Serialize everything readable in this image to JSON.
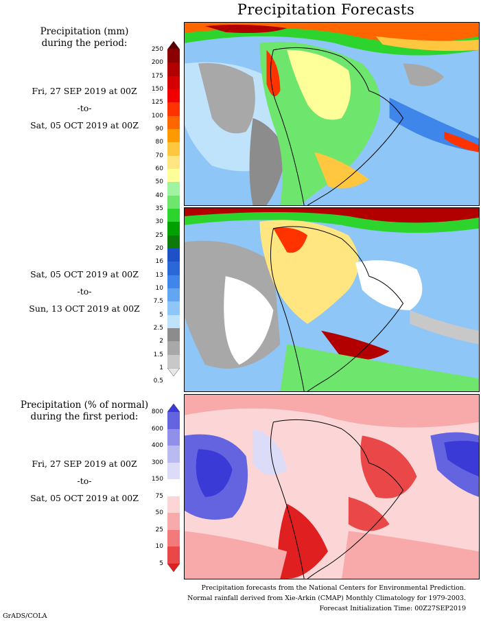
{
  "title": "Precipitation Forecasts",
  "legend1": {
    "heading_line1": "Precipitation (mm)",
    "heading_line2": "during the period:"
  },
  "period1": {
    "from": "Fri, 27 SEP 2019 at 00Z",
    "sep": "-to-",
    "to": "Sat, 05 OCT 2019 at 00Z"
  },
  "period2": {
    "from": "Sat, 05 OCT 2019 at 00Z",
    "sep": "-to-",
    "to": "Sun, 13 OCT 2019 at 00Z"
  },
  "legend2": {
    "heading_line1": "Precipitation (% of normal)",
    "heading_line2": "during the first period:"
  },
  "period3": {
    "from": "Fri, 27 SEP 2019 at 00Z",
    "sep": "-to-",
    "to": "Sat, 05 OCT 2019 at 00Z"
  },
  "mm_scale": {
    "labels": [
      "250",
      "200",
      "175",
      "150",
      "125",
      "100",
      "90",
      "80",
      "70",
      "60",
      "50",
      "40",
      "35",
      "30",
      "25",
      "20",
      "16",
      "13",
      "10",
      "7.5",
      "5",
      "2.5",
      "2",
      "1.5",
      "1",
      "0.5"
    ],
    "colors": [
      "#5e0000",
      "#8b0000",
      "#b20000",
      "#d40000",
      "#f00000",
      "#ff3300",
      "#ff6600",
      "#ff9900",
      "#ffc640",
      "#ffe680",
      "#ffff99",
      "#9ff59f",
      "#6ee66e",
      "#2ed42e",
      "#00a000",
      "#0b7a0b",
      "#1e50c8",
      "#2a68d9",
      "#3f86ea",
      "#62a6f2",
      "#8ec6f7",
      "#bfe3fb",
      "#8c8c8c",
      "#a8a8a8",
      "#c8c8c8",
      "#e6e6e6"
    ]
  },
  "pct_scale": {
    "labels": [
      "800",
      "600",
      "400",
      "300",
      "150",
      "75",
      "50",
      "25",
      "10",
      "5"
    ],
    "colors": [
      "#3a3ad6",
      "#6464e0",
      "#9090ea",
      "#babaf2",
      "#dcdcf8",
      "#ffffff",
      "#fcd6d6",
      "#f8aaaa",
      "#f27a7a",
      "#ea4848",
      "#e02020"
    ]
  },
  "footer": {
    "line1": "Precipitation forecasts from the National Centers for Environmental Prediction.",
    "line2": "Normal rainfall derived from Xie-Arkin (CMAP) Monthly Climatology for 1979-2003.",
    "line3": "Forecast Initialization Time: 00Z27SEP2019"
  },
  "credit": "GrADS/COLA"
}
